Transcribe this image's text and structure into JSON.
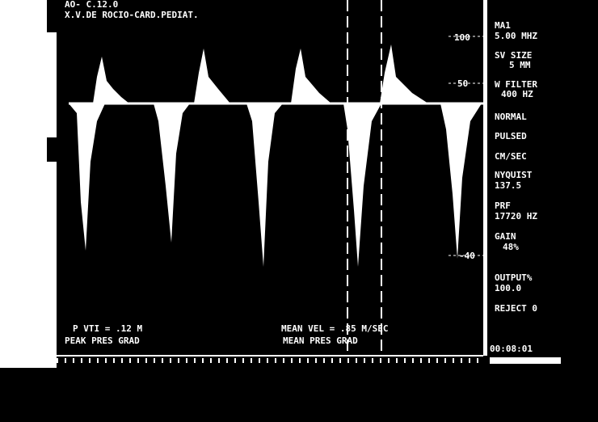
{
  "header": {
    "line1": "AO- C.12.0",
    "line2": "X.V.DE ROCIO-CARD.PEDIAT."
  },
  "scale": [
    "100",
    "50",
    "-40"
  ],
  "panel": {
    "probe": "MA1",
    "frequency": "5.00 MHZ",
    "sv_label": "SV SIZE",
    "sv_value": "5 MM",
    "filter_label": "W FILTER",
    "filter_value": "400 HZ",
    "mode1": "NORMAL",
    "mode2": "PULSED",
    "units": "CM/SEC",
    "nyquist_label": "NYQUIST",
    "nyquist_value": "137.5",
    "prf_label": "PRF",
    "prf_value": "17720 HZ",
    "gain_label": "GAIN",
    "gain_value": "48%",
    "output_label": "OUTPUT%",
    "output_value": "100.0",
    "reject": "REJECT 0",
    "time": "00:08:01"
  },
  "measurements": {
    "vti": "P  VTI =   .12 M",
    "mean_vel": "MEAN VEL =   .85 M/SEC",
    "peak_grad": "PEAK PRES GRAD",
    "mean_grad": "MEAN PRES GRAD"
  }
}
